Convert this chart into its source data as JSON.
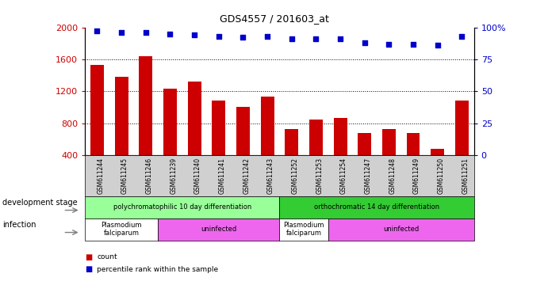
{
  "title": "GDS4557 / 201603_at",
  "samples": [
    "GSM611244",
    "GSM611245",
    "GSM611246",
    "GSM611239",
    "GSM611240",
    "GSM611241",
    "GSM611242",
    "GSM611243",
    "GSM611252",
    "GSM611253",
    "GSM611254",
    "GSM611247",
    "GSM611248",
    "GSM611249",
    "GSM611250",
    "GSM611251"
  ],
  "counts": [
    1530,
    1380,
    1640,
    1230,
    1320,
    1080,
    1000,
    1130,
    730,
    840,
    860,
    680,
    730,
    680,
    480,
    1080
  ],
  "percentiles": [
    97,
    96,
    96,
    95,
    94,
    93,
    92,
    93,
    91,
    91,
    91,
    88,
    87,
    87,
    86,
    93
  ],
  "bar_color": "#cc0000",
  "dot_color": "#0000cc",
  "ylim_left": [
    400,
    2000
  ],
  "ylim_right": [
    0,
    100
  ],
  "yticks_left": [
    400,
    800,
    1200,
    1600,
    2000
  ],
  "yticks_right": [
    0,
    25,
    50,
    75,
    100
  ],
  "yticklabels_right": [
    "0",
    "25",
    "50",
    "75",
    "100%"
  ],
  "hlines": [
    800,
    1200,
    1600
  ],
  "dev_stage_groups": [
    {
      "label": "polychromatophilic 10 day differentiation",
      "start": 0,
      "end": 8,
      "color": "#99ff99"
    },
    {
      "label": "orthochromatic 14 day differentiation",
      "start": 8,
      "end": 16,
      "color": "#33cc33"
    }
  ],
  "infection_groups": [
    {
      "label": "Plasmodium\nfalciparum",
      "start": 0,
      "end": 3,
      "color": "#ffffff"
    },
    {
      "label": "uninfected",
      "start": 3,
      "end": 8,
      "color": "#ee66ee"
    },
    {
      "label": "Plasmodium\nfalciparum",
      "start": 8,
      "end": 10,
      "color": "#ffffff"
    },
    {
      "label": "uninfected",
      "start": 10,
      "end": 16,
      "color": "#ee66ee"
    }
  ],
  "bar_color_red": "#cc0000",
  "dot_color_blue": "#0000cc",
  "axis_color_left": "#cc0000",
  "axis_color_right": "#0000cc",
  "tick_area_color": "#d0d0d0",
  "background_color": "#ffffff"
}
